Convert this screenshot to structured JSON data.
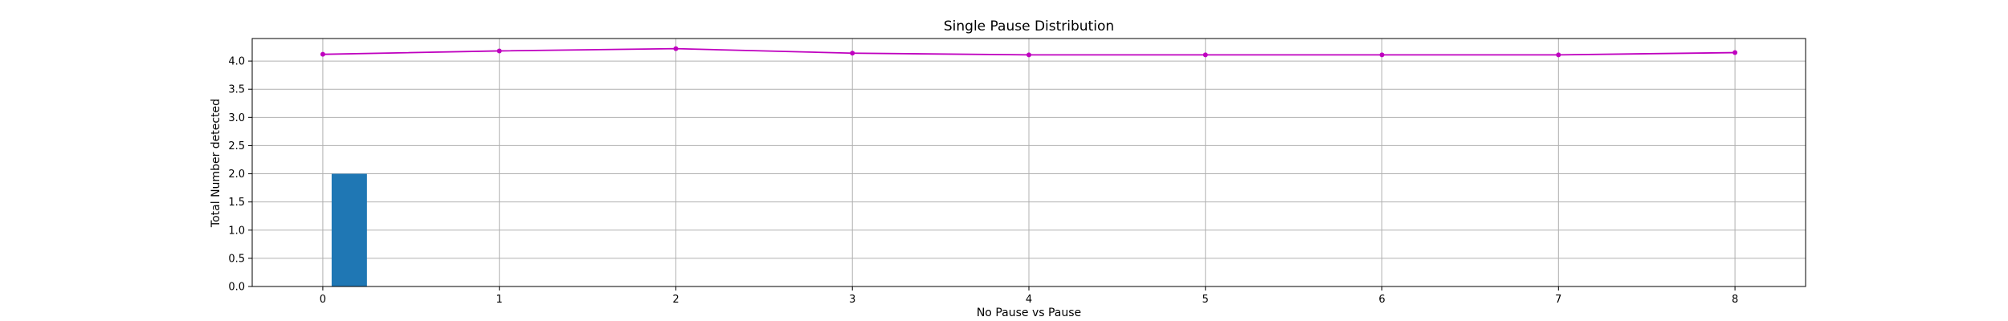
{
  "chart_data": {
    "type": "bar",
    "title": "Single Pause Distribution",
    "xlabel": "No Pause vs Pause",
    "ylabel": "Total Number detected",
    "xlim": [
      -0.4,
      8.4
    ],
    "ylim": [
      0,
      4.4
    ],
    "xticks": [
      0,
      1,
      2,
      3,
      4,
      5,
      6,
      7,
      8
    ],
    "yticks": [
      0.0,
      0.5,
      1.0,
      1.5,
      2.0,
      2.5,
      3.0,
      3.5,
      4.0
    ],
    "grid": true,
    "bars": [
      {
        "x": 0.15,
        "width": 0.2,
        "value": 2.0,
        "color": "#1f77b4"
      }
    ],
    "series": [
      {
        "type": "line",
        "color": "#bf00bf",
        "marker": "dot",
        "x": [
          0,
          1,
          2,
          3,
          4,
          5,
          6,
          7,
          8
        ],
        "values": [
          4.12,
          4.18,
          4.22,
          4.14,
          4.11,
          4.11,
          4.11,
          4.11,
          4.15
        ]
      }
    ]
  }
}
